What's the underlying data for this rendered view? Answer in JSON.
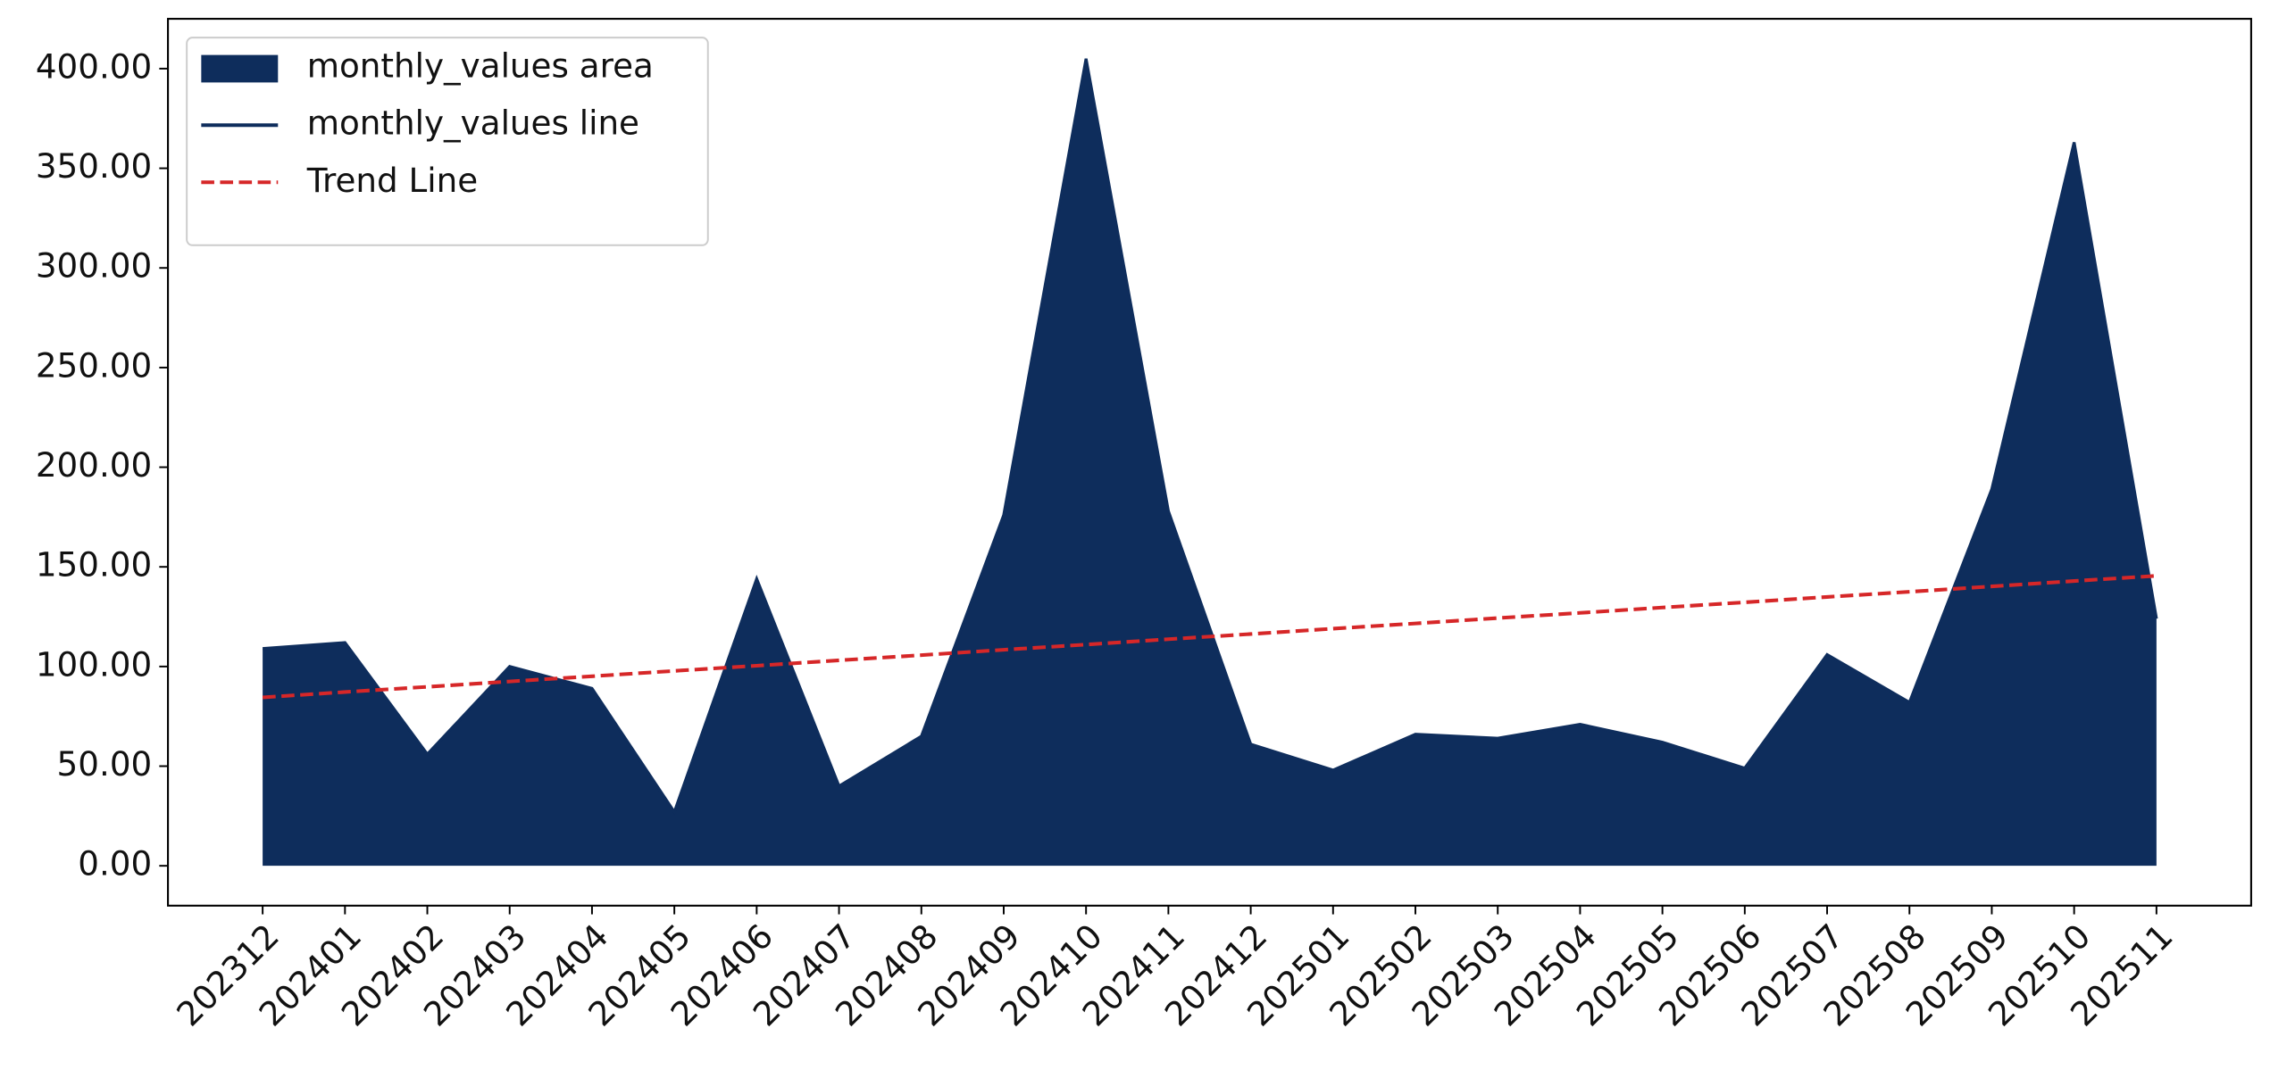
{
  "chart_data": {
    "type": "area",
    "categories": [
      "202312",
      "202401",
      "202402",
      "202403",
      "202404",
      "202405",
      "202406",
      "202407",
      "202408",
      "202409",
      "202410",
      "202411",
      "202412",
      "202501",
      "202502",
      "202503",
      "202504",
      "202505",
      "202506",
      "202507",
      "202508",
      "202509",
      "202510",
      "202511"
    ],
    "series": [
      {
        "name": "monthly_values area",
        "kind": "area",
        "color": "#0e2d5c",
        "values": [
          109,
          112,
          56,
          100,
          89,
          27,
          144,
          40,
          65,
          176,
          405,
          178,
          61,
          48,
          66,
          64,
          71,
          62,
          49,
          106,
          82,
          189,
          363,
          124
        ]
      },
      {
        "name": "monthly_values line",
        "kind": "line",
        "color": "#0e2d5c",
        "values": [
          109,
          112,
          56,
          100,
          89,
          27,
          144,
          40,
          65,
          176,
          405,
          178,
          61,
          48,
          66,
          64,
          71,
          62,
          49,
          106,
          82,
          189,
          363,
          124
        ]
      },
      {
        "name": "Trend Line",
        "kind": "dashed",
        "color": "#d62728",
        "values": [
          84.5,
          87.2,
          89.8,
          92.5,
          95.1,
          97.8,
          100.4,
          103.1,
          105.7,
          108.4,
          111.0,
          113.7,
          116.3,
          119.0,
          121.6,
          124.3,
          126.9,
          129.6,
          132.2,
          134.9,
          137.5,
          140.2,
          142.9,
          145.5
        ]
      }
    ],
    "ylim": [
      -20,
      425
    ],
    "yticks": [
      {
        "value": 0,
        "label": "0.00"
      },
      {
        "value": 50,
        "label": "50.00"
      },
      {
        "value": 100,
        "label": "100.00"
      },
      {
        "value": 150,
        "label": "150.00"
      },
      {
        "value": 200,
        "label": "200.00"
      },
      {
        "value": 250,
        "label": "250.00"
      },
      {
        "value": 300,
        "label": "300.00"
      },
      {
        "value": 350,
        "label": "350.00"
      },
      {
        "value": 400,
        "label": "400.00"
      }
    ],
    "legend": "upper left"
  }
}
